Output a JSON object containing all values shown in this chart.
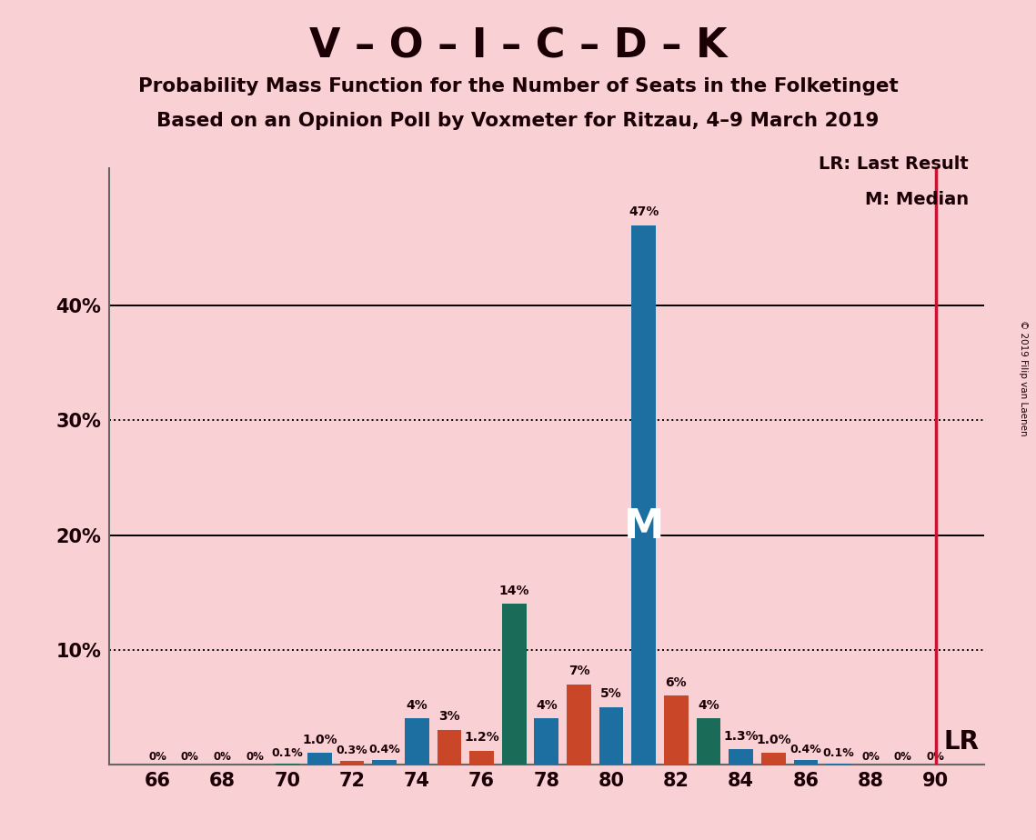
{
  "title1": "V – O – I – C – D – K",
  "title2": "Probability Mass Function for the Number of Seats in the Folketinget",
  "title3": "Based on an Opinion Poll by Voxmeter for Ritzau, 4–9 March 2019",
  "copyright": "© 2019 Filip van Laenen",
  "bg_color": "#f9d0d4",
  "text_color": "#1a0005",
  "blue_color": "#1c6fa0",
  "teal_color": "#1a6b58",
  "orange_color": "#c94728",
  "lr_line_color": "#cc1133",
  "seats": [
    66,
    67,
    68,
    69,
    70,
    71,
    72,
    73,
    74,
    75,
    76,
    77,
    78,
    79,
    80,
    81,
    82,
    83,
    84,
    85,
    86,
    87,
    88,
    89,
    90
  ],
  "probs": [
    0.0,
    0.0,
    0.0,
    0.0,
    0.1,
    1.0,
    0.3,
    0.4,
    4.0,
    3.0,
    1.2,
    14.0,
    4.0,
    7.0,
    5.0,
    47.0,
    6.0,
    4.0,
    1.3,
    1.0,
    0.4,
    0.1,
    0.0,
    0.0,
    0.0
  ],
  "colors": [
    "blue",
    "blue",
    "blue",
    "blue",
    "teal",
    "blue",
    "orange",
    "blue",
    "blue",
    "orange",
    "orange",
    "teal",
    "blue",
    "orange",
    "blue",
    "blue",
    "orange",
    "teal",
    "blue",
    "orange",
    "blue",
    "blue",
    "blue",
    "blue",
    "blue"
  ],
  "labels": [
    "0%",
    "0%",
    "0%",
    "0%",
    "0.1%",
    "1.0%",
    "0.3%",
    "0.4%",
    "4%",
    "3%",
    "1.2%",
    "14%",
    "4%",
    "7%",
    "5%",
    "47%",
    "6%",
    "4%",
    "1.3%",
    "1.0%",
    "0.4%",
    "0.1%",
    "0%",
    "0%",
    "0%"
  ],
  "median_seat_idx": 15,
  "lr_seat": 90,
  "bar_width": 0.75,
  "xlim": [
    64.5,
    91.5
  ],
  "ylim": [
    0,
    52
  ],
  "xticks": [
    66,
    68,
    70,
    72,
    74,
    76,
    78,
    80,
    82,
    84,
    86,
    88,
    90
  ],
  "ytick_vals": [
    0,
    10,
    20,
    30,
    40,
    50
  ],
  "ytick_labels": [
    "",
    "10%",
    "20%",
    "30%",
    "40%",
    ""
  ],
  "dotted_lines": [
    10,
    30
  ],
  "solid_lines": [
    20,
    40
  ],
  "lr_legend": "LR: Last Result",
  "m_legend": "M: Median",
  "m_label": "M",
  "lr_label": "LR"
}
